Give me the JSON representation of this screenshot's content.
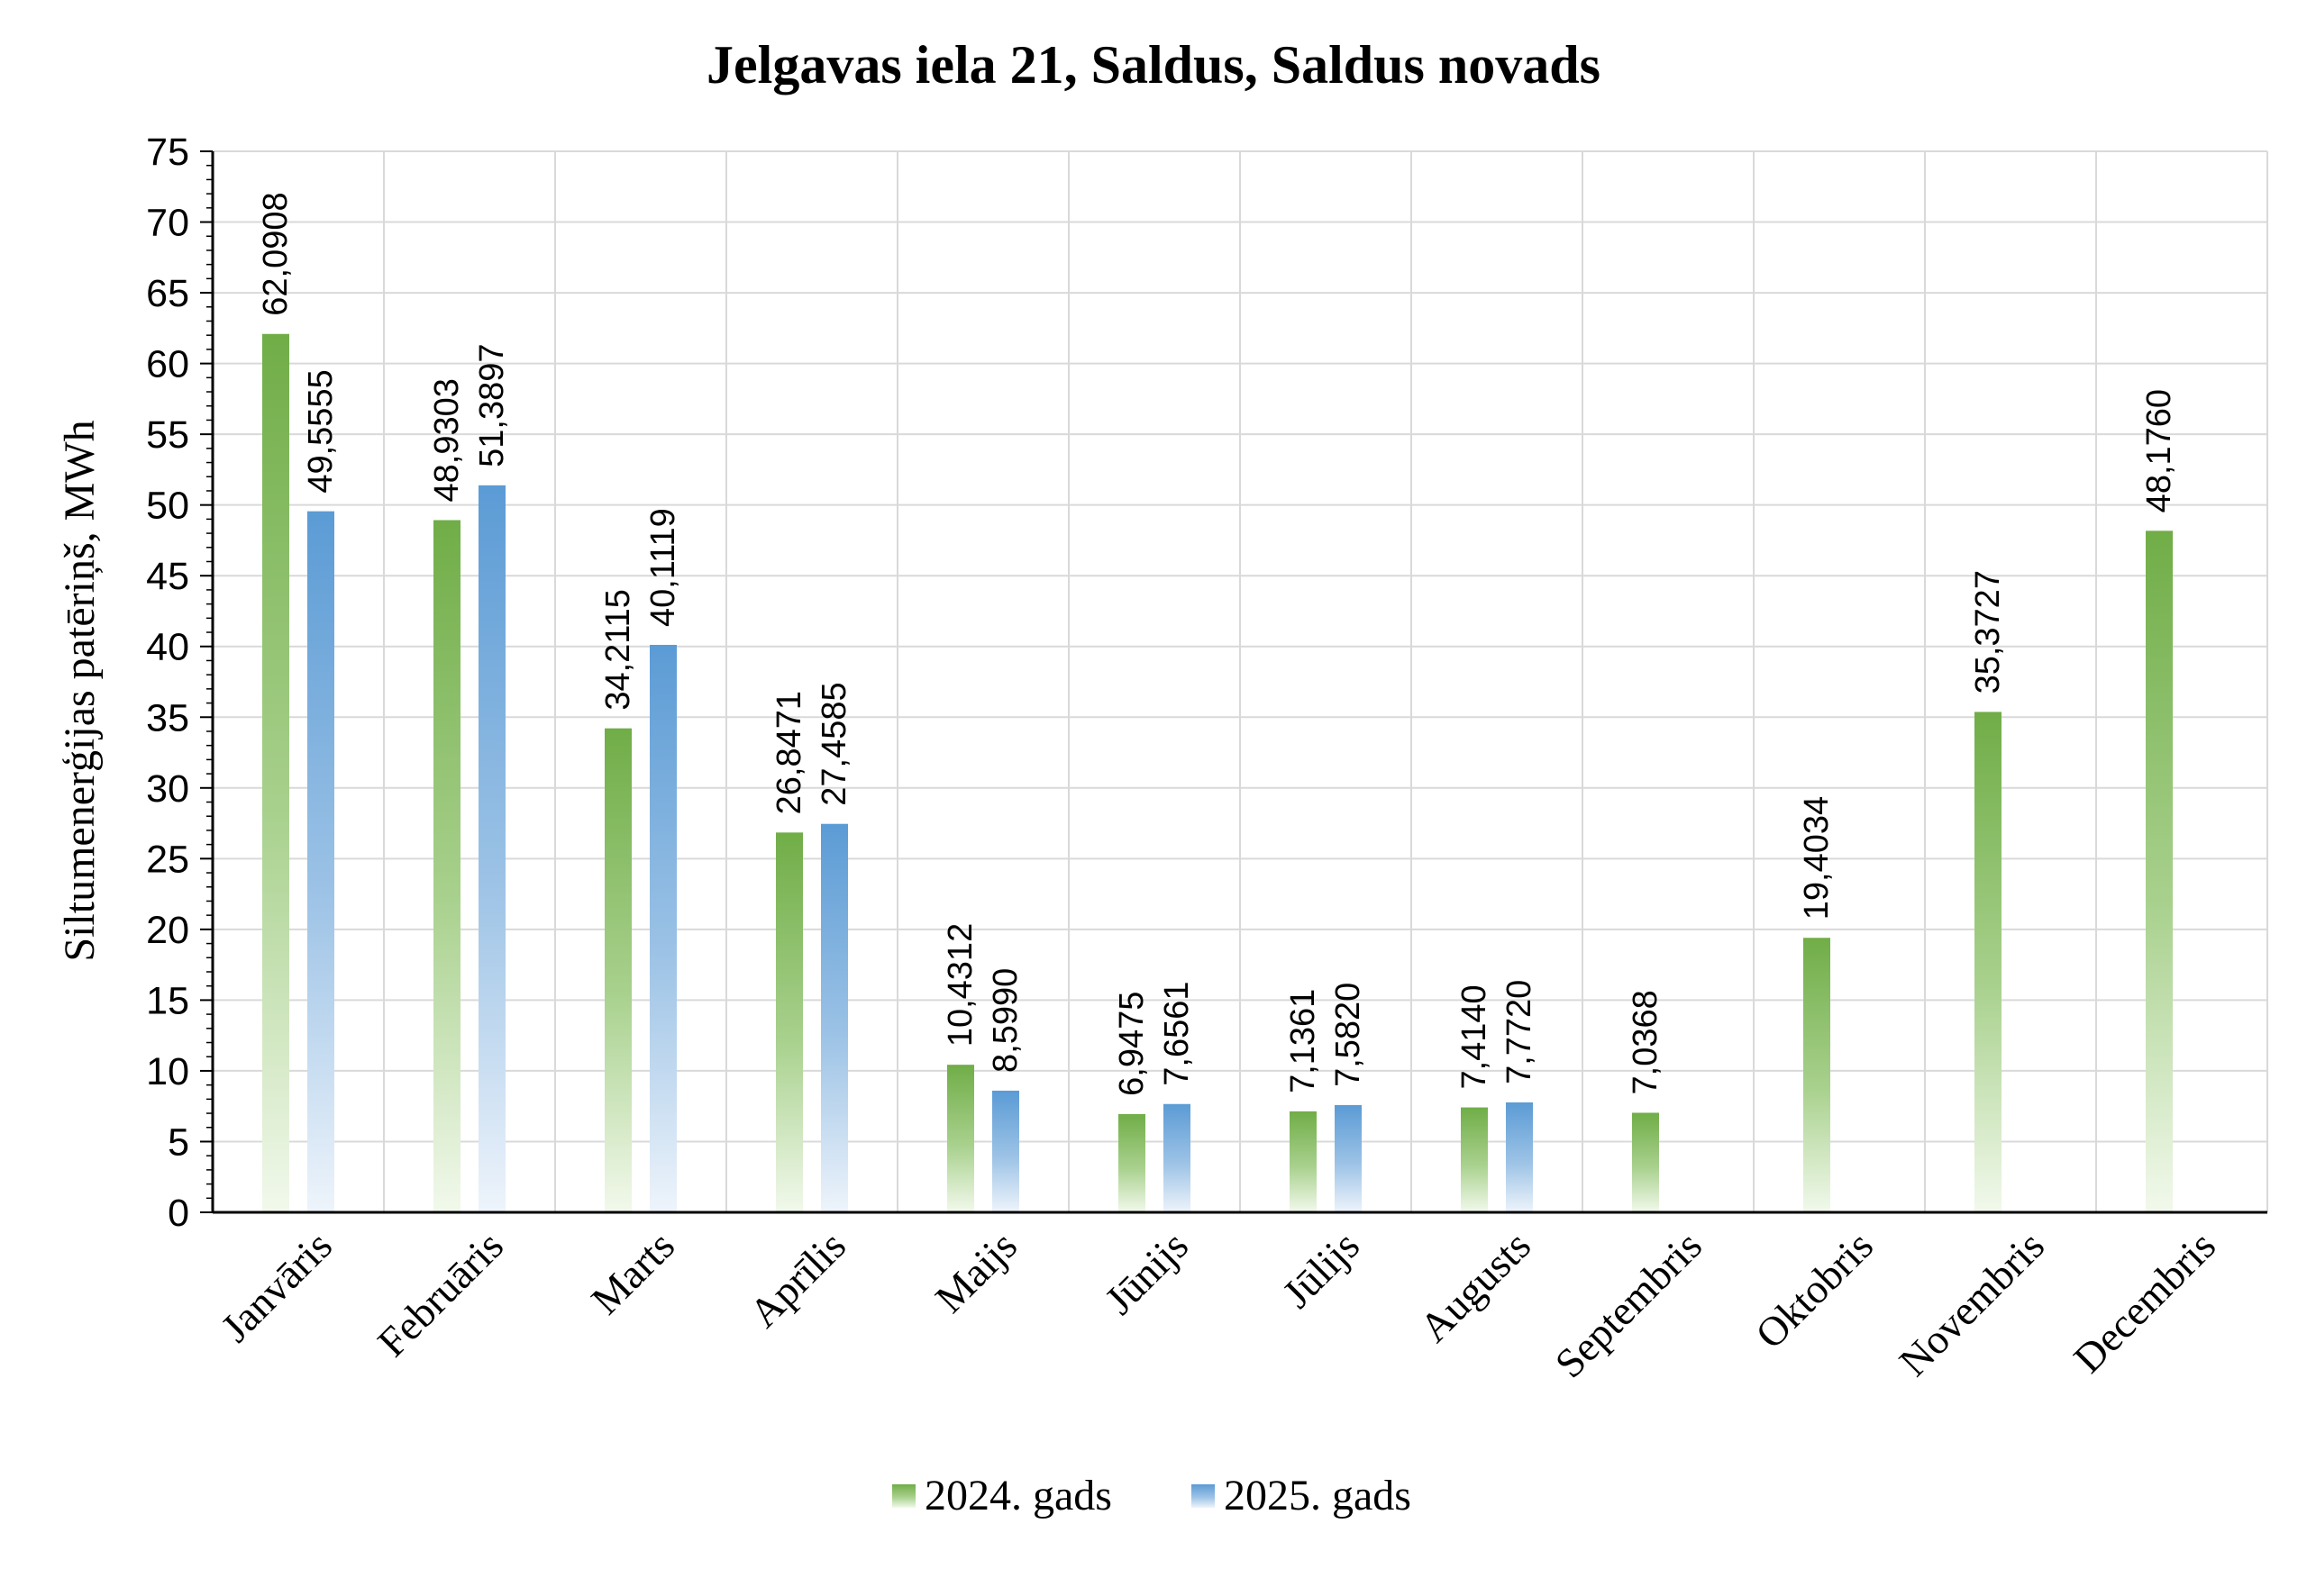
{
  "chart_data": {
    "type": "bar",
    "title": "Jelgavas iela 21, Saldus, Saldus novads",
    "xlabel": "",
    "ylabel": "Siltumenerģijas patēriņš, MWh",
    "ylim": [
      0,
      75
    ],
    "ytick_step": 5,
    "grid": true,
    "legend_position": "bottom",
    "categories": [
      "Janvāris",
      "Februāris",
      "Marts",
      "Aprīlis",
      "Maijs",
      "Jūnijs",
      "Jūlijs",
      "Augusts",
      "Septembris",
      "Oktobris",
      "Novembris",
      "Decembris"
    ],
    "series": [
      {
        "name": "2024. gads",
        "color": "#70AD47",
        "values": [
          62.0908,
          48.9303,
          34.2115,
          26.8471,
          10.4312,
          6.9475,
          7.1361,
          7.414,
          7.0368,
          19.4034,
          35.3727,
          48.176
        ],
        "labels": [
          "62,0908",
          "48,9303",
          "34,2115",
          "26,8471",
          "10,4312",
          "6,9475",
          "7,1361",
          "7,4140",
          "7,0368",
          "19,4034",
          "35,3727",
          "48,1760"
        ]
      },
      {
        "name": "2025. gads",
        "color": "#5B9BD5",
        "values": [
          49.5555,
          51.3897,
          40.1119,
          27.4585,
          8.599,
          7.6561,
          7.582,
          7.772,
          null,
          null,
          null,
          null
        ],
        "labels": [
          "49,5555",
          "51,3897",
          "40,1119",
          "27,4585",
          "8,5990",
          "7,6561",
          "7,5820",
          "7,7720",
          "",
          "",
          "",
          ""
        ]
      }
    ]
  }
}
